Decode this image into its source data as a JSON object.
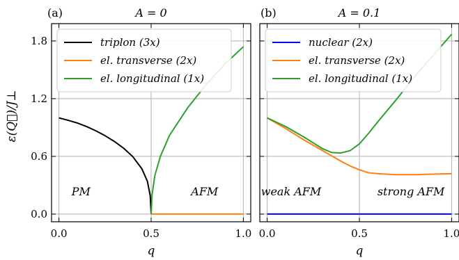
{
  "ylabel": "ε(Q⃗)/J⊥",
  "chart_data": [
    {
      "panel_label": "(a)",
      "title": "A = 0",
      "type": "line",
      "xlabel": "q",
      "xlim": [
        -0.04,
        1.04
      ],
      "ylim": [
        -0.08,
        1.98
      ],
      "xticks": [
        0.0,
        0.5,
        1.0
      ],
      "xtick_labels": [
        "0.0",
        "0.5",
        "1.0"
      ],
      "yticks": [
        0.0,
        0.6,
        1.2,
        1.8
      ],
      "ytick_labels": [
        "0.0",
        "0.6",
        "1.2",
        "1.8"
      ],
      "grid": true,
      "legend_position": "top-left",
      "annotations": [
        {
          "text": "PM",
          "x": 0.12,
          "y": 0.23
        },
        {
          "text": "AFM",
          "x": 0.79,
          "y": 0.23
        }
      ],
      "series": [
        {
          "name": "triplon (3x)",
          "color": "#000000",
          "x": [
            0.0,
            0.05,
            0.1,
            0.15,
            0.2,
            0.25,
            0.3,
            0.35,
            0.4,
            0.45,
            0.48,
            0.495,
            0.5
          ],
          "y": [
            1.0,
            0.975,
            0.947,
            0.91,
            0.866,
            0.815,
            0.756,
            0.686,
            0.598,
            0.47,
            0.34,
            0.19,
            0.0
          ]
        },
        {
          "name": "el. transverse (2x)",
          "color": "#ff7f0e",
          "x": [
            0.5,
            1.0
          ],
          "y": [
            0.0,
            0.0
          ]
        },
        {
          "name": "el. longitudinal (1x)",
          "color": "#2ca02c",
          "x": [
            0.5,
            0.505,
            0.52,
            0.55,
            0.6,
            0.7,
            0.8,
            0.9,
            1.0
          ],
          "y": [
            0.0,
            0.2,
            0.4,
            0.6,
            0.82,
            1.11,
            1.35,
            1.56,
            1.74
          ]
        }
      ]
    },
    {
      "panel_label": "(b)",
      "title": "A = 0.1",
      "type": "line",
      "xlabel": "q",
      "xlim": [
        -0.04,
        1.04
      ],
      "ylim": [
        -0.08,
        1.98
      ],
      "xticks": [
        0.0,
        0.5,
        1.0
      ],
      "xtick_labels": [
        "0.0",
        "0.5",
        "1.0"
      ],
      "yticks": [
        0.0,
        0.6,
        1.2,
        1.8
      ],
      "grid": true,
      "legend_position": "top-left",
      "annotations": [
        {
          "text": "weak AFM",
          "x": 0.13,
          "y": 0.23
        },
        {
          "text": "strong AFM",
          "x": 0.78,
          "y": 0.23
        }
      ],
      "series": [
        {
          "name": "nuclear (2x)",
          "color": "#0000ff",
          "x": [
            0.0,
            1.0
          ],
          "y": [
            0.0,
            0.0
          ]
        },
        {
          "name": "el. transverse (2x)",
          "color": "#ff7f0e",
          "x": [
            0.0,
            0.1,
            0.2,
            0.3,
            0.4,
            0.45,
            0.5,
            0.55,
            0.6,
            0.7,
            0.8,
            0.9,
            1.0
          ],
          "y": [
            1.0,
            0.89,
            0.77,
            0.66,
            0.55,
            0.5,
            0.46,
            0.43,
            0.42,
            0.41,
            0.41,
            0.415,
            0.42
          ]
        },
        {
          "name": "el. longitudinal (1x)",
          "color": "#2ca02c",
          "x": [
            0.0,
            0.1,
            0.2,
            0.3,
            0.35,
            0.4,
            0.45,
            0.5,
            0.55,
            0.6,
            0.7,
            0.8,
            0.9,
            1.0
          ],
          "y": [
            1.0,
            0.91,
            0.8,
            0.68,
            0.64,
            0.635,
            0.66,
            0.73,
            0.84,
            0.96,
            1.19,
            1.43,
            1.65,
            1.87
          ]
        }
      ]
    }
  ]
}
